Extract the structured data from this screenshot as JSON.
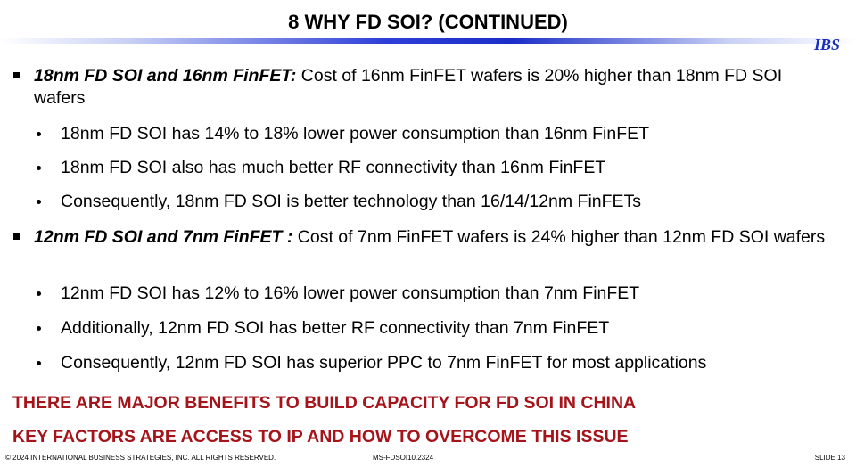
{
  "header": {
    "title": "8  WHY FD SOI? (CONTINUED)",
    "logo": "IBS"
  },
  "bullets": [
    {
      "lead": "18nm FD SOI and 16nm FinFET:",
      "text": " Cost of 16nm FinFET wafers is 20% higher than 18nm FD SOI wafers",
      "sub": [
        "18nm FD SOI has 14% to 18% lower power consumption than 16nm FinFET",
        "18nm FD SOI also has much better RF connectivity than 16nm FinFET",
        "Consequently, 18nm FD SOI is better technology than 16/14/12nm FinFETs"
      ]
    },
    {
      "lead": "12nm FD SOI and 7nm FinFET :",
      "text": " Cost of 7nm FinFET wafers is 24% higher than 12nm FD SOI wafers",
      "sub": [
        "12nm FD SOI has 12% to 16% lower power consumption than 7nm FinFET",
        "Additionally, 12nm FD SOI has better RF connectivity than 7nm FinFET",
        "Consequently, 12nm FD SOI has superior PPC to 7nm FinFET for most applications"
      ]
    }
  ],
  "conclusions": [
    "THERE ARE MAJOR BENEFITS TO BUILD CAPACITY FOR FD SOI IN CHINA",
    "KEY FACTORS ARE ACCESS TO IP AND HOW TO OVERCOME THIS ISSUE"
  ],
  "footer": {
    "copyright": "© 2024 INTERNATIONAL BUSINESS STRATEGIES, INC. ALL RIGHTS RESERVED.",
    "code": "MS-FDSOI10.2324",
    "slide": "SLIDE 13"
  }
}
